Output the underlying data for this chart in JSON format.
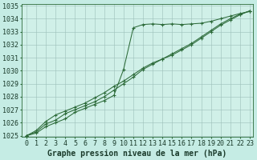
{
  "title": "Graphe pression niveau de la mer (hPa)",
  "bg_color": "#c5ece4",
  "plot_bg_color": "#d0f0e8",
  "grid_color": "#9bbfb8",
  "line_color": "#2d6b3a",
  "x_min": 0,
  "x_max": 23,
  "y_min": 1025,
  "y_max": 1035,
  "series": [
    [
      1025.0,
      1025.4,
      1026.1,
      1026.6,
      1026.9,
      1027.2,
      1027.5,
      1027.9,
      1028.3,
      1028.8,
      1029.2,
      1029.7,
      1030.2,
      1030.6,
      1030.9,
      1031.2,
      1031.6,
      1032.0,
      1032.5,
      1033.0,
      1033.5,
      1033.9,
      1034.3,
      1034.6
    ],
    [
      1025.0,
      1025.3,
      1025.9,
      1026.2,
      1026.7,
      1027.0,
      1027.3,
      1027.6,
      1028.0,
      1028.5,
      1029.0,
      1029.5,
      1030.1,
      1030.5,
      1030.9,
      1031.3,
      1031.7,
      1032.1,
      1032.6,
      1033.1,
      1033.6,
      1034.0,
      1034.35,
      1034.6
    ],
    [
      1025.0,
      1025.2,
      1025.7,
      1026.0,
      1026.3,
      1026.8,
      1027.1,
      1027.4,
      1027.7,
      1028.1,
      1030.1,
      1033.3,
      1033.55,
      1033.6,
      1033.55,
      1033.6,
      1033.55,
      1033.6,
      1033.65,
      1033.8,
      1034.0,
      1034.2,
      1034.4,
      1034.55
    ]
  ],
  "xlabel_fontsize": 7.0,
  "tick_fontsize": 6.0,
  "ylabel_values": [
    1025,
    1026,
    1027,
    1028,
    1029,
    1030,
    1031,
    1032,
    1033,
    1034,
    1035
  ]
}
